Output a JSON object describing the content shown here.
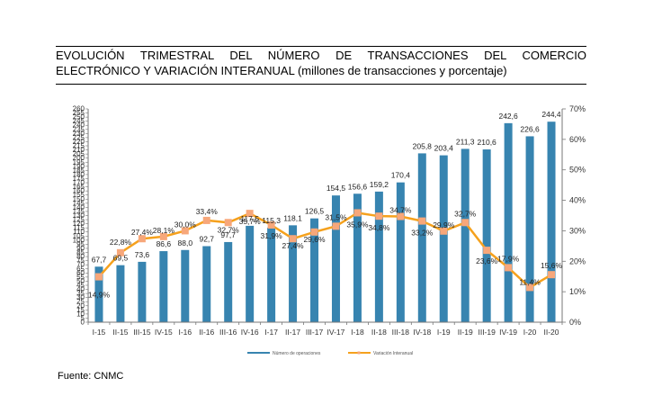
{
  "title_line1": "EVOLUCIÓN TRIMESTRAL DEL NÚMERO DE TRANSACCIONES DEL COMERCIO",
  "title_line2": "ELECTRÓNICO Y VARIACIÓN INTERANUAL (millones de transacciones y porcentaje)",
  "source": "Fuente: CNMC",
  "colors": {
    "bars": "#3784b0",
    "line": "#f5a11d",
    "marker": "#f7a77a"
  },
  "chart_data": {
    "type": "bar",
    "title": "EVOLUCIÓN TRIMESTRAL DEL NÚMERO DE TRANSACCIONES DEL COMERCIO ELECTRÓNICO Y VARIACIÓN INTERANUAL (millones de transacciones y porcentaje)",
    "categories": [
      "I-15",
      "II-15",
      "III-15",
      "IV-15",
      "I-16",
      "II-16",
      "III-16",
      "IV-16",
      "I-17",
      "II-17",
      "III-17",
      "IV-17",
      "I-18",
      "II-18",
      "III-18",
      "IV-18",
      "I-19",
      "II-19",
      "III-19",
      "IV-19",
      "I-20",
      "II-20"
    ],
    "series": [
      {
        "name": "Número de operaciones",
        "type": "bar",
        "axis": "left",
        "values": [
          67.7,
          69.5,
          73.6,
          86.6,
          88.0,
          92.7,
          97.7,
          117.5,
          115.3,
          118.1,
          126.5,
          154.5,
          156.6,
          159.2,
          170.4,
          205.8,
          203.4,
          211.3,
          210.6,
          242.6,
          226.6,
          244.4
        ],
        "labels": [
          "67,7",
          "69,5",
          "73,6",
          "86,6",
          "88,0",
          "92,7",
          "97,7",
          "117,5",
          "115,3",
          "118,1",
          "126,5",
          "154,5",
          "156,6",
          "159,2",
          "170,4",
          "205,8",
          "203,4",
          "211,3",
          "210,6",
          "242,6",
          "226,6",
          "244,4"
        ]
      },
      {
        "name": "Variación Interanual",
        "type": "line",
        "axis": "right",
        "values": [
          14.9,
          22.8,
          27.4,
          28.1,
          30.0,
          33.4,
          32.7,
          35.7,
          31.9,
          27.4,
          29.6,
          31.5,
          35.9,
          34.8,
          34.7,
          33.2,
          29.9,
          32.7,
          23.6,
          17.9,
          11.4,
          15.6
        ],
        "labels": [
          "14,9%",
          "22,8%",
          "27,4%",
          "28,1%",
          "30,0%",
          "33,4%",
          "32,7%",
          "35,7%",
          "31,9%",
          "27,4%",
          "29,6%",
          "31,5%",
          "35,9%",
          "34,8%",
          "34,7%",
          "33,2%",
          "29,9%",
          "32,7%",
          "23,6%",
          "17,9%",
          "11,4%",
          "15,6%"
        ]
      }
    ],
    "left_axis": {
      "min": 0,
      "max": 260,
      "step": 5
    },
    "right_axis": {
      "min": 0,
      "max": 70,
      "step": 10,
      "tick_labels": [
        "0%",
        "10%",
        "20%",
        "30%",
        "40%",
        "50%",
        "60%",
        "70%"
      ]
    },
    "grid": false,
    "legend": {
      "position": "bottom",
      "entries": [
        "Número de operaciones",
        "Variación Interanual"
      ]
    }
  }
}
